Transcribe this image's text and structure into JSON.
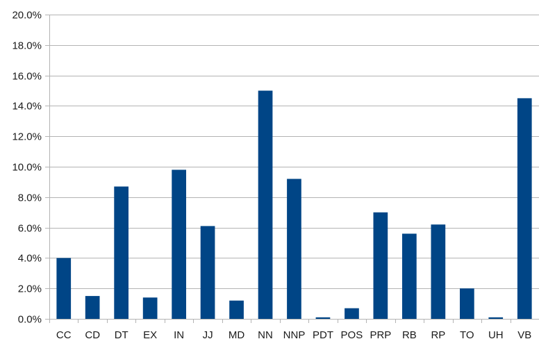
{
  "chart_data": {
    "type": "bar",
    "categories": [
      "CC",
      "CD",
      "DT",
      "EX",
      "IN",
      "JJ",
      "MD",
      "NN",
      "NNP",
      "PDT",
      "POS",
      "PRP",
      "RB",
      "RP",
      "TO",
      "UH",
      "VB"
    ],
    "values": [
      4.0,
      1.5,
      8.7,
      1.4,
      9.8,
      6.1,
      1.2,
      15.0,
      9.2,
      0.1,
      0.7,
      7.0,
      5.6,
      6.2,
      2.0,
      0.1,
      14.5
    ],
    "y_ticks": [
      "0.0%",
      "2.0%",
      "4.0%",
      "6.0%",
      "8.0%",
      "10.0%",
      "12.0%",
      "14.0%",
      "16.0%",
      "18.0%",
      "20.0%"
    ],
    "ylim": [
      0,
      20
    ],
    "y_unit": "%",
    "grid": true,
    "bar_color": "#004586",
    "grid_color": "#b3b3b3",
    "title": "",
    "xlabel": "",
    "ylabel": ""
  }
}
